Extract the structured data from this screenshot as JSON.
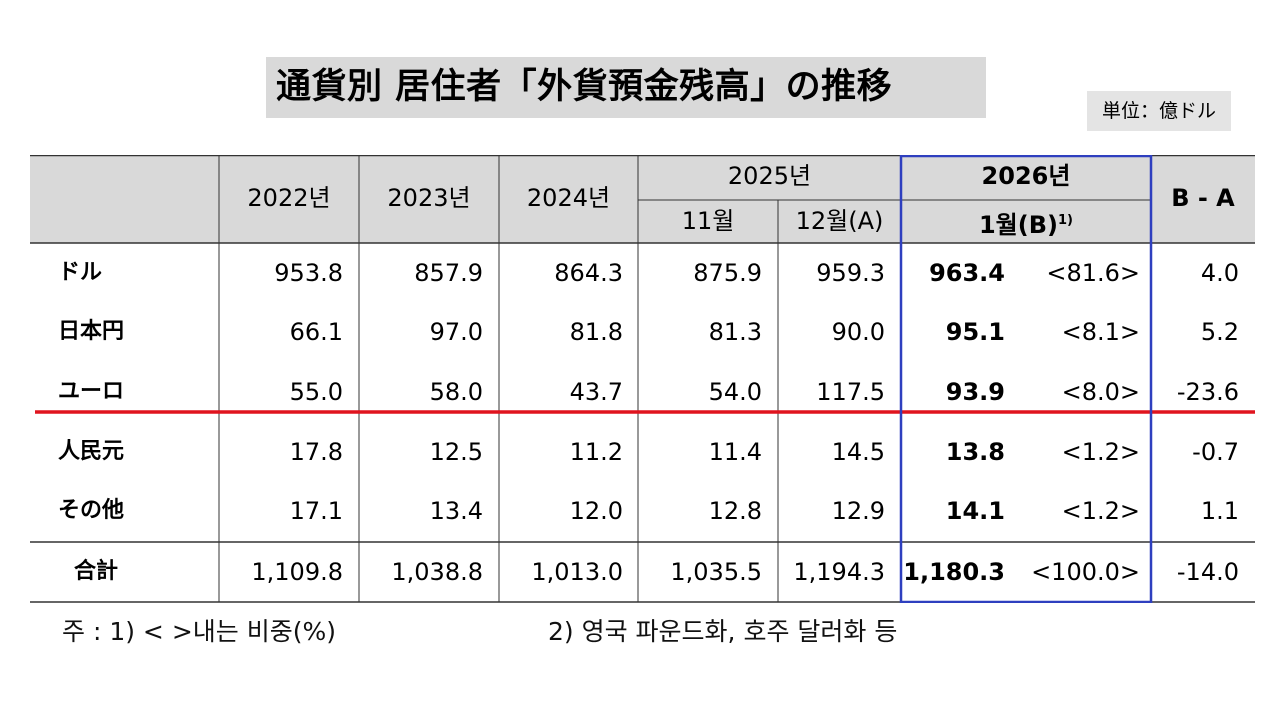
{
  "title": "通貨別 居住者「外貨預金残高」の推移",
  "unit_label": "単位：億ドル",
  "table": {
    "headers": {
      "y2022": "2022년",
      "y2023": "2023년",
      "y2024": "2024년",
      "y2025": "2025년",
      "m11": "11월",
      "m12": "12월(A)",
      "y2026": "2026년",
      "m1_main": "1월(B)",
      "m1_sup": "1)",
      "diff": "B - A"
    },
    "rows": [
      {
        "label": "ドル",
        "v2022": "953.8",
        "v2023": "857.9",
        "v2024": "864.3",
        "nov": "875.9",
        "dec": "959.3",
        "jan": "963.4",
        "share": "<81.6>",
        "diff": "4.0"
      },
      {
        "label": "日本円",
        "v2022": "66.1",
        "v2023": "97.0",
        "v2024": "81.8",
        "nov": "81.3",
        "dec": "90.0",
        "jan": "95.1",
        "share": "<8.1>",
        "diff": "5.2"
      },
      {
        "label": "ユーロ",
        "v2022": "55.0",
        "v2023": "58.0",
        "v2024": "43.7",
        "nov": "54.0",
        "dec": "117.5",
        "jan": "93.9",
        "share": "<8.0>",
        "diff": "-23.6"
      },
      {
        "label": "人民元",
        "v2022": "17.8",
        "v2023": "12.5",
        "v2024": "11.2",
        "nov": "11.4",
        "dec": "14.5",
        "jan": "13.8",
        "share": "<1.2>",
        "diff": "-0.7"
      },
      {
        "label": "その他",
        "v2022": "17.1",
        "v2023": "13.4",
        "v2024": "12.0",
        "nov": "12.8",
        "dec": "12.9",
        "jan": "14.1",
        "share": "<1.2>",
        "diff": "1.1"
      },
      {
        "label": "合計",
        "v2022": "1,109.8",
        "v2023": "1,038.8",
        "v2024": "1,013.0",
        "nov": "1,035.5",
        "dec": "1,194.3",
        "jan": "1,180.3",
        "share": "<100.0>",
        "diff": "-14.0"
      }
    ]
  },
  "notes": {
    "note1": "주 : 1) <    >내는 비중(%)",
    "note2": "2) 영국 파운드화, 호주 달러화 등"
  },
  "colors": {
    "header_bg": "#d9d9d9",
    "highlight_border": "#2e3fbf",
    "separator_line": "#e0141e"
  },
  "chart_data": {
    "type": "table",
    "title": "通貨別 居住者「外貨預金残高」の推移",
    "columns": [
      "2022년",
      "2023년",
      "2024년",
      "2025년 11월",
      "2025년 12월(A)",
      "2026년 1월(B)",
      "비중",
      "B - A"
    ],
    "rows": [
      [
        "ドル",
        953.8,
        857.9,
        864.3,
        875.9,
        959.3,
        963.4,
        81.6,
        4.0
      ],
      [
        "日本円",
        66.1,
        97.0,
        81.8,
        81.3,
        90.0,
        95.1,
        8.1,
        5.2
      ],
      [
        "ユーロ",
        55.0,
        58.0,
        43.7,
        54.0,
        117.5,
        93.9,
        8.0,
        -23.6
      ],
      [
        "人民元",
        17.8,
        12.5,
        11.2,
        11.4,
        14.5,
        13.8,
        1.2,
        -0.7
      ],
      [
        "その他",
        17.1,
        13.4,
        12.0,
        12.8,
        12.9,
        14.1,
        1.2,
        1.1
      ],
      [
        "合計",
        1109.8,
        1038.8,
        1013.0,
        1035.5,
        1194.3,
        1180.3,
        100.0,
        -14.0
      ]
    ]
  }
}
